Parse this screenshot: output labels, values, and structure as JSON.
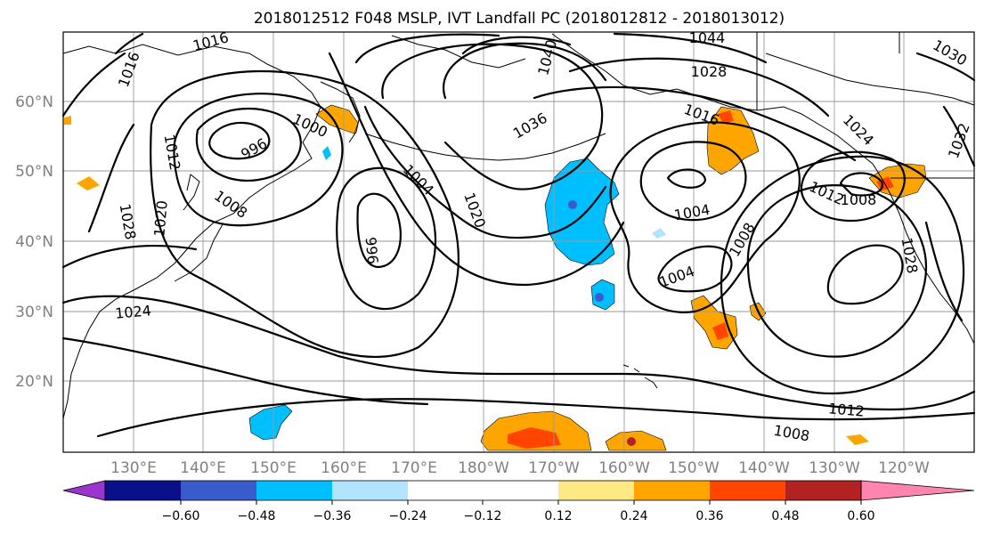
{
  "title": "2018012512 F048 MSLP, IVT Landfall PC (2018012812 - 2018013012)",
  "latitude_labels": [
    "60°N",
    "50°N",
    "40°N",
    "30°N",
    "20°N"
  ],
  "longitude_labels": [
    "130°E",
    "140°E",
    "150°E",
    "160°E",
    "170°E",
    "180°W",
    "170°W",
    "160°W",
    "150°W",
    "140°W",
    "130°W",
    "120°W"
  ],
  "isobar_labels": [
    "1016",
    "1016",
    "1012",
    "1020",
    "1028",
    "1024",
    "1008",
    "996",
    "1000",
    "1004",
    "996",
    "1020",
    "1036",
    "1040",
    "1044",
    "1028",
    "1016",
    "1004",
    "1008",
    "1004",
    "1024",
    "1012",
    "1008",
    "1032",
    "1030",
    "1028",
    "1012",
    "1008"
  ],
  "colorbar": {
    "ticks": [
      "−0.60",
      "−0.48",
      "−0.36",
      "−0.24",
      "−0.12",
      "0.12",
      "0.24",
      "0.36",
      "0.48",
      "0.60"
    ],
    "colors": [
      "#9b35d0",
      "#0a0f8a",
      "#3a5bcc",
      "#00bfff",
      "#b3e4ff",
      "#ffffff",
      "#ffe985",
      "#ffa500",
      "#ff4500",
      "#b22222",
      "#ff85b0"
    ]
  }
}
